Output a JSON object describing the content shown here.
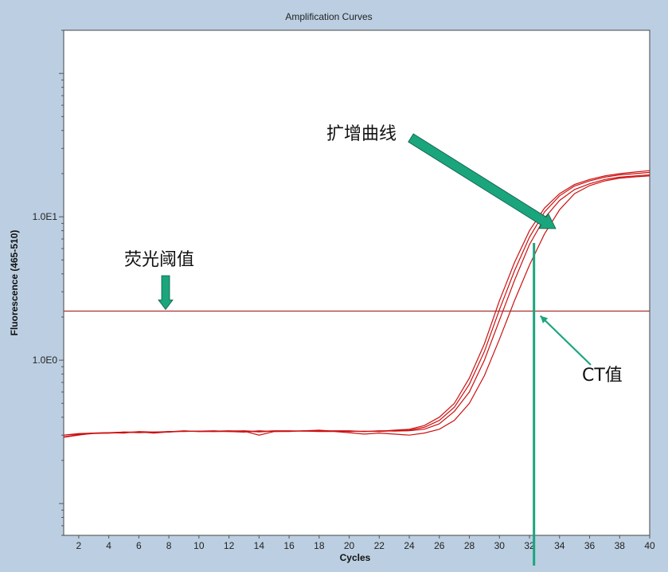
{
  "chart_data": {
    "type": "line",
    "title": "Amplification Curves",
    "xlabel": "Cycles",
    "ylabel": "Fluorescence (465-510)",
    "x_ticks": [
      2,
      4,
      6,
      8,
      10,
      12,
      14,
      16,
      18,
      20,
      22,
      24,
      26,
      28,
      30,
      32,
      34,
      36,
      38,
      40
    ],
    "y_scale": "log",
    "y_tick_labels": [
      {
        "value": 1,
        "label": "1.0E0"
      },
      {
        "value": 10,
        "label": "1.0E1"
      }
    ],
    "xlim": [
      1,
      40
    ],
    "ylim": [
      0.06,
      200
    ],
    "threshold": 2.2,
    "ct_value": 32.3,
    "series_color": "#cc1111",
    "threshold_color": "#a83030",
    "annotation_color": "#1aa57d",
    "series": [
      {
        "x": [
          1,
          2,
          3,
          4,
          5,
          6,
          7,
          8,
          9,
          10,
          11,
          12,
          13,
          14,
          15,
          16,
          17,
          18,
          19,
          20,
          21,
          22,
          23,
          24,
          25,
          26,
          27,
          28,
          29,
          30,
          31,
          32,
          33,
          34,
          35,
          36,
          37,
          38,
          39,
          40
        ],
        "values": [
          0.3,
          0.305,
          0.31,
          0.31,
          0.315,
          0.315,
          0.312,
          0.318,
          0.32,
          0.318,
          0.32,
          0.322,
          0.32,
          0.316,
          0.32,
          0.32,
          0.322,
          0.325,
          0.32,
          0.32,
          0.318,
          0.32,
          0.325,
          0.33,
          0.35,
          0.4,
          0.5,
          0.75,
          1.3,
          2.6,
          4.8,
          8.0,
          11.5,
          14.5,
          16.8,
          18.2,
          19.3,
          20.0,
          20.5,
          21.0
        ]
      },
      {
        "x": [
          1,
          2,
          3,
          4,
          5,
          6,
          7,
          8,
          9,
          10,
          11,
          12,
          13,
          14,
          15,
          16,
          17,
          18,
          19,
          20,
          21,
          22,
          23,
          24,
          25,
          26,
          27,
          28,
          29,
          30,
          31,
          32,
          33,
          34,
          35,
          36,
          37,
          38,
          39,
          40
        ],
        "values": [
          0.29,
          0.3,
          0.31,
          0.312,
          0.31,
          0.318,
          0.315,
          0.315,
          0.32,
          0.32,
          0.318,
          0.32,
          0.322,
          0.318,
          0.322,
          0.322,
          0.32,
          0.322,
          0.32,
          0.318,
          0.32,
          0.318,
          0.322,
          0.325,
          0.34,
          0.38,
          0.47,
          0.68,
          1.15,
          2.25,
          4.2,
          7.2,
          10.8,
          14.0,
          16.4,
          17.8,
          18.9,
          19.6,
          20.0,
          20.4
        ]
      },
      {
        "x": [
          1,
          2,
          3,
          4,
          5,
          6,
          7,
          8,
          9,
          10,
          11,
          12,
          13,
          14,
          15,
          16,
          17,
          18,
          19,
          20,
          21,
          22,
          23,
          24,
          25,
          26,
          27,
          28,
          29,
          30,
          31,
          32,
          33,
          34,
          35,
          36,
          37,
          38,
          39,
          40
        ],
        "values": [
          0.3,
          0.308,
          0.31,
          0.312,
          0.315,
          0.312,
          0.315,
          0.318,
          0.318,
          0.32,
          0.322,
          0.318,
          0.315,
          0.322,
          0.318,
          0.318,
          0.322,
          0.32,
          0.322,
          0.322,
          0.318,
          0.322,
          0.32,
          0.322,
          0.33,
          0.36,
          0.44,
          0.6,
          1.0,
          1.9,
          3.6,
          6.4,
          9.8,
          13.0,
          15.5,
          17.0,
          18.2,
          18.9,
          19.3,
          19.6
        ]
      },
      {
        "x": [
          1,
          2,
          3,
          4,
          5,
          6,
          7,
          8,
          9,
          10,
          11,
          12,
          13,
          14,
          15,
          16,
          17,
          18,
          19,
          20,
          21,
          22,
          23,
          24,
          25,
          26,
          27,
          28,
          29,
          30,
          31,
          32,
          33,
          34,
          35,
          36,
          37,
          38,
          39,
          40
        ],
        "values": [
          0.292,
          0.302,
          0.308,
          0.31,
          0.312,
          0.316,
          0.31,
          0.316,
          0.322,
          0.318,
          0.318,
          0.318,
          0.32,
          0.3,
          0.318,
          0.32,
          0.32,
          0.318,
          0.318,
          0.312,
          0.305,
          0.31,
          0.305,
          0.3,
          0.31,
          0.33,
          0.38,
          0.5,
          0.78,
          1.4,
          2.6,
          4.6,
          7.6,
          11.2,
          14.5,
          16.5,
          17.8,
          18.6,
          19.0,
          19.3
        ]
      }
    ],
    "annotations": {
      "amplification": "扩增曲线",
      "threshold": "荧光阈值",
      "ct": "CT值"
    }
  }
}
